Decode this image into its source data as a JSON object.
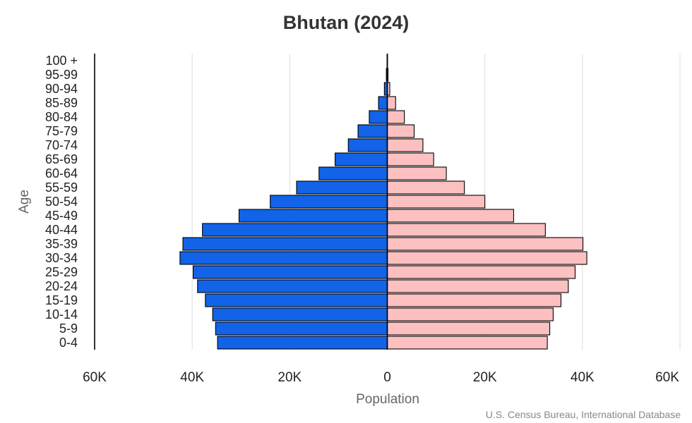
{
  "chart_data": {
    "type": "bar",
    "orientation": "horizontal",
    "title": "Bhutan (2024)",
    "xlabel": "Population",
    "ylabel": "Age",
    "source": "U.S. Census Bureau, International Database",
    "xlim": [
      -60000,
      60000
    ],
    "x_tick_values": [
      -60000,
      -40000,
      -20000,
      0,
      20000,
      40000,
      60000
    ],
    "x_tick_labels": [
      "60K",
      "40K",
      "20K",
      "0",
      "20K",
      "40K",
      "60K"
    ],
    "grid": true,
    "categories": [
      "0-4",
      "5-9",
      "10-14",
      "15-19",
      "20-24",
      "25-29",
      "30-34",
      "35-39",
      "40-44",
      "45-49",
      "50-54",
      "55-59",
      "60-64",
      "65-69",
      "70-74",
      "75-79",
      "80-84",
      "85-89",
      "90-94",
      "95-99",
      "100 +"
    ],
    "series": [
      {
        "name": "",
        "side": "left",
        "color": "#1263e8",
        "values": [
          34800,
          35200,
          35800,
          37300,
          38900,
          39800,
          42500,
          41900,
          37900,
          30400,
          24000,
          18600,
          14000,
          10700,
          8000,
          6000,
          3700,
          1800,
          600,
          200,
          50
        ]
      },
      {
        "name": "",
        "side": "right",
        "color": "#fcc0c0",
        "values": [
          32800,
          33300,
          34000,
          35600,
          37100,
          38500,
          40900,
          40100,
          32400,
          25900,
          20000,
          15800,
          12100,
          9500,
          7300,
          5500,
          3500,
          1700,
          500,
          150,
          40
        ]
      }
    ]
  }
}
